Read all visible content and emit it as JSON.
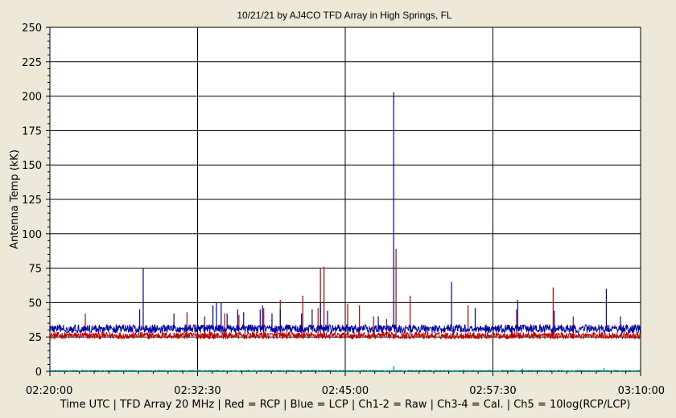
{
  "chart_data": {
    "type": "line",
    "title": "10/21/21  by  AJ4CO TFD Array  in  High Springs, FL",
    "ylabel": "Antenna Temp (kK)",
    "xlabel": "Time UTC | TFD Array 20 MHz | Red = RCP | Blue = LCP | Ch1-2 = Raw | Ch3-4 = Cal. | Ch5 = 10log(RCP/LCP)",
    "ylim": [
      0,
      250
    ],
    "yticks": [
      "0",
      "25",
      "50",
      "75",
      "100",
      "125",
      "150",
      "175",
      "200",
      "225",
      "250"
    ],
    "xticks": [
      "02:20:00",
      "02:32:30",
      "02:45:00",
      "02:57:30",
      "03:10:00"
    ],
    "x_range_minutes": [
      0,
      50
    ],
    "grid": true,
    "legend": "none",
    "series": [
      {
        "color": "#c00000",
        "baseline": 26,
        "noise": 2.5,
        "spikes": [
          [
            3.0,
            42
          ],
          [
            11.6,
            43
          ],
          [
            13.1,
            40
          ],
          [
            14.8,
            42
          ],
          [
            16.0,
            41
          ],
          [
            18.1,
            46
          ],
          [
            19.5,
            52
          ],
          [
            21.4,
            55
          ],
          [
            22.7,
            46
          ],
          [
            22.9,
            75
          ],
          [
            23.2,
            76
          ],
          [
            25.2,
            49
          ],
          [
            26.2,
            48
          ],
          [
            27.4,
            40
          ],
          [
            28.5,
            38
          ],
          [
            29.3,
            89
          ],
          [
            30.5,
            55
          ],
          [
            35.4,
            48
          ],
          [
            39.5,
            45
          ],
          [
            42.6,
            61
          ],
          [
            44.3,
            40
          ]
        ]
      },
      {
        "color": "#0000a8",
        "baseline": 31,
        "noise": 3,
        "spikes": [
          [
            7.6,
            45
          ],
          [
            7.9,
            75
          ],
          [
            10.5,
            42
          ],
          [
            13.8,
            48
          ],
          [
            14.1,
            50
          ],
          [
            14.5,
            50
          ],
          [
            15.0,
            42
          ],
          [
            15.9,
            45
          ],
          [
            16.4,
            43
          ],
          [
            17.8,
            45
          ],
          [
            18.0,
            48
          ],
          [
            18.8,
            42
          ],
          [
            19.5,
            45
          ],
          [
            21.3,
            42
          ],
          [
            22.2,
            45
          ],
          [
            22.9,
            50
          ],
          [
            23.5,
            44
          ],
          [
            27.8,
            40
          ],
          [
            29.1,
            203
          ],
          [
            34.0,
            65
          ],
          [
            36.0,
            46
          ],
          [
            39.6,
            52
          ],
          [
            42.7,
            44
          ],
          [
            47.1,
            60
          ],
          [
            48.3,
            40
          ]
        ]
      },
      {
        "color": "#00a0a0",
        "baseline": 0.5,
        "noise": 0.4,
        "spikes": [
          [
            29.1,
            4
          ],
          [
            40.0,
            2
          ],
          [
            46.9,
            2.5
          ]
        ]
      }
    ]
  }
}
